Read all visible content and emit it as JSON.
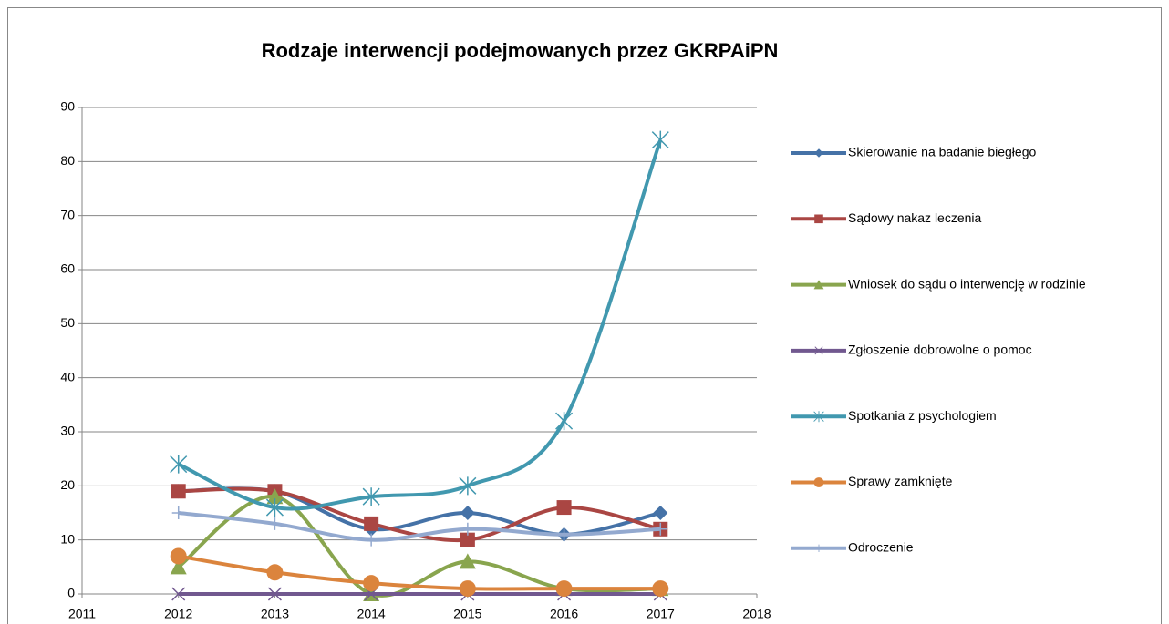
{
  "chart_data": {
    "type": "line",
    "title": "Rodzaje interwencji podejmowanych przez GKRPAiPN",
    "x": [
      2012,
      2013,
      2014,
      2015,
      2016,
      2017
    ],
    "xlim": [
      2011,
      2018
    ],
    "xticks": [
      2011,
      2012,
      2013,
      2014,
      2015,
      2016,
      2017,
      2018
    ],
    "ylim": [
      0,
      90
    ],
    "yticks": [
      0,
      10,
      20,
      30,
      40,
      50,
      60,
      70,
      80,
      90
    ],
    "grid": true,
    "smooth": true,
    "legend": "right",
    "series": [
      {
        "name": "Skierowanie na badanie biegłego",
        "color": "#4572a7",
        "marker": "diamond",
        "values": [
          19,
          19,
          12,
          15,
          11,
          15
        ]
      },
      {
        "name": "Sądowy nakaz leczenia",
        "color": "#aa4643",
        "marker": "square",
        "values": [
          19,
          19,
          13,
          10,
          16,
          12
        ]
      },
      {
        "name": "Wniosek do sądu o interwencję w rodzinie",
        "color": "#89a54e",
        "marker": "triangle",
        "values": [
          5,
          18,
          0,
          6,
          1,
          1
        ]
      },
      {
        "name": "Zgłoszenie dobrowolne o pomoc",
        "color": "#71588f",
        "marker": "x",
        "values": [
          0,
          0,
          0,
          0,
          0,
          0
        ]
      },
      {
        "name": "Spotkania z psychologiem",
        "color": "#4198af",
        "marker": "star",
        "values": [
          24,
          16,
          18,
          20,
          32,
          84
        ]
      },
      {
        "name": "Sprawy zamknięte",
        "color": "#db843d",
        "marker": "circle",
        "values": [
          7,
          4,
          2,
          1,
          1,
          1
        ]
      },
      {
        "name": "Odroczenie",
        "color": "#93a9cf",
        "marker": "plus",
        "values": [
          15,
          13,
          10,
          12,
          11,
          12
        ]
      }
    ]
  }
}
